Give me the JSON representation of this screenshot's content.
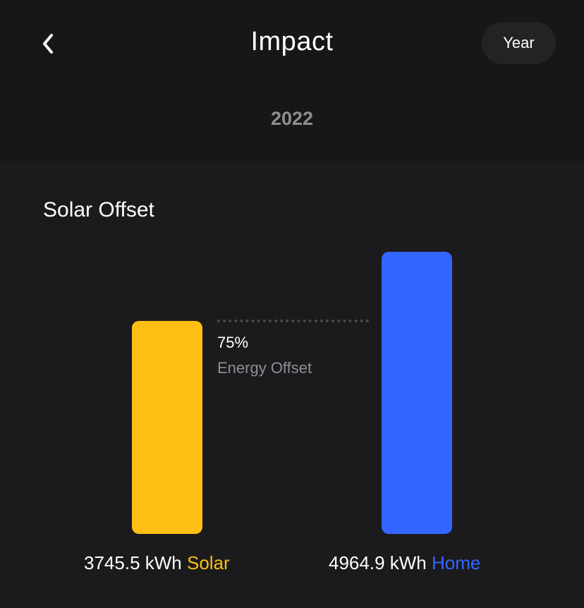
{
  "header": {
    "title": "Impact",
    "period_button_label": "Year",
    "back_icon": "chevron-left-icon"
  },
  "period": {
    "year": "2022"
  },
  "section": {
    "title": "Solar Offset"
  },
  "offset": {
    "percent_text": "75%",
    "label": "Energy Offset"
  },
  "chart_data": {
    "type": "bar",
    "categories": [
      "Solar",
      "Home"
    ],
    "values": [
      3745.5,
      4964.9
    ],
    "unit": "kWh",
    "colors": [
      "#fdbf14",
      "#3366ff"
    ],
    "offset_percent": 75
  },
  "captions": {
    "solar_value": "3745.5 kWh",
    "solar_name": "Solar",
    "home_value": "4964.9 kWh",
    "home_name": "Home"
  },
  "colors": {
    "background": "#1b1b1d",
    "header_background": "#171718",
    "solar": "#fdbf14",
    "home": "#3366ff",
    "muted_text": "#8e8e93"
  }
}
